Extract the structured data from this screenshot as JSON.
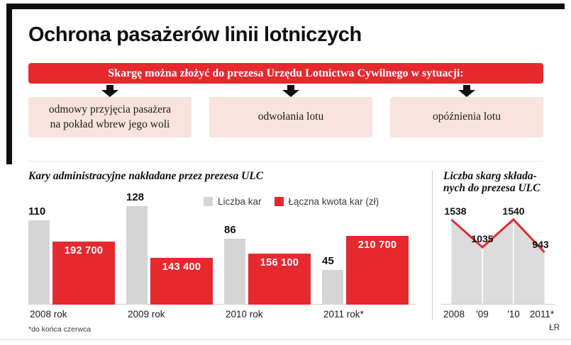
{
  "page": {
    "title": "Ochrona pasażerów linii lotniczych",
    "banner": "Skargę można złożyć do prezesa Urzędu Lotnictwa Cywilnego w sytuacji:",
    "footnote": "*do końca czerwca",
    "credit": "ŁR"
  },
  "situations": [
    "odmowy przyjęcia pasażera na pokład wbrew jego woli",
    "odwołania lotu",
    "opóźnienia lotu"
  ],
  "colors": {
    "accent_red": "#e5292e",
    "bar_gray": "#d5d5d5",
    "box_pink": "#f9e3de",
    "ink": "#101010"
  },
  "chart_data": [
    {
      "type": "bar",
      "title": "Kary administracyjne nakładane przez prezesa ULC",
      "categories": [
        "2008 rok",
        "2009 rok",
        "2010 rok",
        "2011 rok*"
      ],
      "series": [
        {
          "name": "Liczba kar",
          "color": "#d5d5d5",
          "values": [
            110,
            128,
            86,
            45
          ]
        },
        {
          "name": "Łączna kwota kar (zł)",
          "color": "#e5292e",
          "values": [
            192700,
            143400,
            156100,
            210700
          ]
        }
      ],
      "legend_position": "top-right",
      "grid": false
    },
    {
      "type": "line",
      "title": "Liczba skarg składanych do prezesa ULC",
      "title_lines": [
        "Liczba skarg składa-",
        "nych do prezesa ULC"
      ],
      "categories": [
        "2008",
        "'09",
        "'10",
        "2011*"
      ],
      "values": [
        1538,
        1035,
        1540,
        943
      ],
      "line_color": "#e5292e",
      "area_color": "#dcdcdc",
      "grid": false
    }
  ]
}
